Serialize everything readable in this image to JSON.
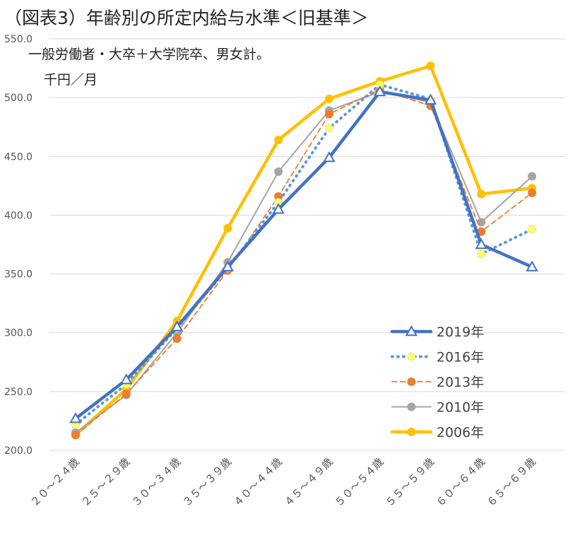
{
  "chart_data": {
    "type": "line",
    "title": "（図表3）年齢別の所定内給与水準＜旧基準＞",
    "subtitle": "一般労働者・大卒＋大学院卒、男女計。",
    "ylabel": "千円／月",
    "xlabel": "",
    "ylim": [
      200,
      550
    ],
    "yticks": [
      "200.0",
      "250.0",
      "300.0",
      "350.0",
      "400.0",
      "450.0",
      "500.0",
      "550.0"
    ],
    "grid": true,
    "legend_position": "bottom-right",
    "categories": [
      "２０～２４歳",
      "２５～２９歳",
      "３０～３４歳",
      "３５～３９歳",
      "４０～４４歳",
      "４５～４９歳",
      "５０～５４歳",
      "５５～５９歳",
      "６０～６４歳",
      "６５～６９歳"
    ],
    "series": [
      {
        "name": "2006年",
        "color": "#FFC000",
        "style": "solid-thick",
        "marker": "circle",
        "values": [
          213,
          252,
          310,
          389,
          464,
          499,
          514,
          527,
          418,
          423
        ]
      },
      {
        "name": "2010年",
        "color": "#A5A5A5",
        "style": "solid-thin",
        "marker": "circle",
        "values": [
          215,
          247,
          300,
          360,
          437,
          489,
          505,
          496,
          394,
          433
        ]
      },
      {
        "name": "2013年",
        "color": "#ED7D31",
        "style": "dashed",
        "marker": "circle",
        "values": [
          213,
          248,
          295,
          353,
          416,
          486,
          507,
          493,
          386,
          419
        ]
      },
      {
        "name": "2016年",
        "color": "#5B9BD5",
        "style": "dotted",
        "marker": "circle-yellow",
        "values": [
          222,
          256,
          304,
          355,
          411,
          474,
          511,
          499,
          367,
          388
        ]
      },
      {
        "name": "2019年",
        "color": "#4472C4",
        "style": "solid-thick",
        "marker": "triangle",
        "values": [
          227,
          260,
          305,
          356,
          405,
          449,
          505,
          498,
          375,
          356
        ]
      }
    ],
    "legend_order": [
      "2019年",
      "2016年",
      "2013年",
      "2010年",
      "2006年"
    ]
  }
}
